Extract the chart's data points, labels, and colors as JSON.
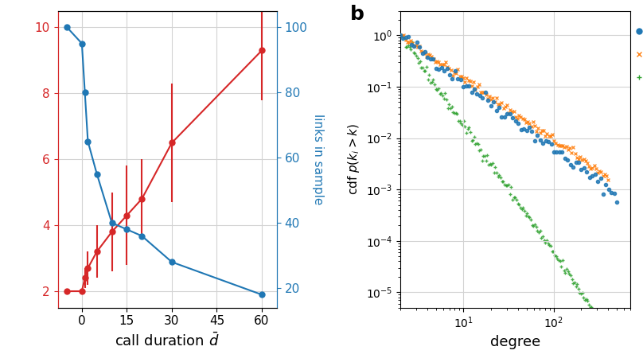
{
  "left_panel": {
    "blue_x": [
      -5,
      0,
      1,
      2,
      5,
      10,
      15,
      20,
      30,
      60
    ],
    "blue_y": [
      100,
      95,
      80,
      65,
      55,
      40,
      38,
      36,
      28,
      18
    ],
    "red_x": [
      -5,
      0,
      1,
      2,
      5,
      10,
      15,
      20,
      30,
      60
    ],
    "red_y": [
      2.0,
      2.0,
      2.4,
      2.7,
      3.2,
      3.8,
      4.3,
      4.8,
      6.5,
      9.3
    ],
    "red_yerr": [
      0.0,
      0.0,
      0.3,
      0.5,
      0.8,
      1.2,
      1.5,
      1.2,
      1.8,
      1.5
    ],
    "xlabel": "call duration $\\bar{d}$",
    "ylabel_left": "",
    "ylabel_right": "links in sample",
    "left_yticks": [
      2,
      4,
      6,
      8,
      10
    ],
    "right_yticks": [
      20,
      40,
      60,
      80,
      100
    ],
    "xticks": [
      0,
      15,
      30,
      45,
      60
    ],
    "left_color": "#d62728",
    "right_color": "#1f77b4",
    "xlim": [
      -8,
      65
    ],
    "left_ylim": [
      1.5,
      10.5
    ],
    "right_ylim": [
      14,
      105
    ]
  },
  "right_panel": {
    "label_b": "b",
    "xlabel": "degree",
    "ylabel": "cdf $p(k_i > k)$",
    "blue_color": "#1f77b4",
    "orange_color": "#ff7f0e",
    "green_color": "#2ca02c",
    "blue_marker": "o",
    "orange_marker": "x",
    "green_marker": "+"
  }
}
